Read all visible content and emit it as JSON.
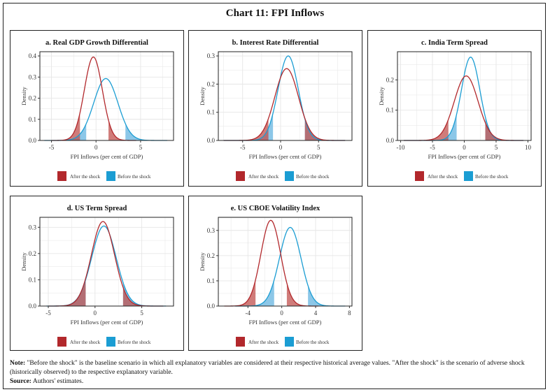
{
  "title": "Chart 11: FPI Inflows",
  "colors": {
    "after": "#b2282c",
    "before": "#1b9dd3",
    "after_fill": "#c0504d",
    "before_fill": "#6fb9e2"
  },
  "legend": {
    "after": "After the shock",
    "before": "Before the shock"
  },
  "note": {
    "label": "Note:",
    "text": "\"Before the shock\" is the baseline scenario in which all explanatory variables are considered at their respective historical average values. \"After the  shock\" is the scenario of adverse shock (historically observed) to the respective explanatory variable.",
    "source_label": "Source:",
    "source_text": "Authors' estimates."
  },
  "chart_data": [
    {
      "type": "area",
      "title": "a. Real GDP Growth Differential",
      "xlabel": "FPI Inflows (per cent of GDP)",
      "ylabel": "Density",
      "xlim": [
        -6.3,
        8.7
      ],
      "ylim": [
        0,
        0.42
      ],
      "xticks": [
        -5,
        0,
        5
      ],
      "yticks": [
        0,
        0.1,
        0.2,
        0.3,
        0.4
      ],
      "ytick_labels": [
        "0.0",
        "0.1",
        "0.2",
        "0.3",
        "0.4"
      ],
      "grid": true,
      "legend": "bottom",
      "series": [
        {
          "name": "Before the shock",
          "key": "before",
          "mode": 1.1,
          "peak_density": 0.293,
          "sd": 1.36,
          "range": [
            -5.8,
            8.0
          ],
          "shaded_below": -1.1,
          "shaded_above": 3.3
        },
        {
          "name": "After the shock",
          "key": "after",
          "mode": -0.3,
          "peak_density": 0.395,
          "sd": 1.01,
          "range": [
            -5.0,
            4.5
          ],
          "shaded_below": -1.8,
          "shaded_above": 1.4
        }
      ]
    },
    {
      "type": "area",
      "title": "b. Interest Rate Differential",
      "xlabel": "FPI Inflows (per cent of GDP)",
      "ylabel": "Density",
      "xlim": [
        -8.2,
        9.4
      ],
      "ylim": [
        0,
        0.315
      ],
      "xticks": [
        -5,
        0,
        5
      ],
      "yticks": [
        0,
        0.1,
        0.2,
        0.3
      ],
      "ytick_labels": [
        "0.0",
        "0.1",
        "0.2",
        "0.3"
      ],
      "grid": true,
      "legend": "bottom",
      "series": [
        {
          "name": "Before the shock",
          "key": "before",
          "mode": 1.0,
          "peak_density": 0.3,
          "sd": 1.33,
          "range": [
            -7.5,
            8.5
          ],
          "shaded_below": -1.0,
          "shaded_above": 3.2
        },
        {
          "name": "After the shock",
          "key": "after",
          "mode": 0.8,
          "peak_density": 0.255,
          "sd": 1.56,
          "range": [
            -7.5,
            8.5
          ],
          "shaded_below": -1.6,
          "shaded_above": 3.2
        }
      ]
    },
    {
      "type": "area",
      "title": "c. India Term Spread",
      "xlabel": "FPI Inflows (per cent of GDP)",
      "ylabel": "Density",
      "xlim": [
        -10.5,
        10.5
      ],
      "ylim": [
        0,
        0.293
      ],
      "xticks": [
        -10,
        -5,
        0,
        5,
        10
      ],
      "yticks": [
        0,
        0.1,
        0.2
      ],
      "ytick_labels": [
        "0.0",
        "0.1",
        "0.2"
      ],
      "grid": true,
      "legend": "bottom",
      "series": [
        {
          "name": "Before the shock",
          "key": "before",
          "mode": 1.0,
          "peak_density": 0.275,
          "sd": 1.45,
          "range": [
            -9.5,
            9.3
          ],
          "shaded_below": -1.2,
          "shaded_above": 3.3
        },
        {
          "name": "After the shock",
          "key": "after",
          "mode": 0.3,
          "peak_density": 0.213,
          "sd": 1.87,
          "range": [
            -9.5,
            9.3
          ],
          "shaded_below": -2.5,
          "shaded_above": 3.3
        }
      ]
    },
    {
      "type": "area",
      "title": "d. US Term Spread",
      "xlabel": "FPI Inflows (per cent of GDP)",
      "ylabel": "Density",
      "xlim": [
        -5.9,
        8.4
      ],
      "ylim": [
        0,
        0.338
      ],
      "xticks": [
        -5,
        0,
        5
      ],
      "yticks": [
        0,
        0.1,
        0.2,
        0.3
      ],
      "ytick_labels": [
        "0.0",
        "0.1",
        "0.2",
        "0.3"
      ],
      "grid": true,
      "legend": "bottom",
      "series": [
        {
          "name": "Before the shock",
          "key": "before",
          "mode": 0.95,
          "peak_density": 0.305,
          "sd": 1.31,
          "range": [
            -5.2,
            7.6
          ],
          "shaded_below": -1.0,
          "shaded_above": 3.0
        },
        {
          "name": "After the shock",
          "key": "after",
          "mode": 0.85,
          "peak_density": 0.322,
          "sd": 1.24,
          "range": [
            -5.0,
            7.3
          ],
          "shaded_below": -1.0,
          "shaded_above": 3.0
        }
      ]
    },
    {
      "type": "area",
      "title": "e. US CBOE Volatility Index",
      "xlabel": "FPI Inflows (per cent of GDP)",
      "ylabel": "Density",
      "xlim": [
        -7.5,
        8.3
      ],
      "ylim": [
        0,
        0.352
      ],
      "xticks": [
        -4,
        0,
        4,
        8
      ],
      "yticks": [
        0,
        0.1,
        0.2,
        0.3
      ],
      "ytick_labels": [
        "0.0",
        "0.1",
        "0.2",
        "0.3"
      ],
      "grid": true,
      "legend": "bottom",
      "series": [
        {
          "name": "Before the shock",
          "key": "before",
          "mode": 1.0,
          "peak_density": 0.312,
          "sd": 1.28,
          "range": [
            -5.5,
            7.5
          ],
          "shaded_below": -0.9,
          "shaded_above": 3.1
        },
        {
          "name": "After the shock",
          "key": "after",
          "mode": -1.3,
          "peak_density": 0.34,
          "sd": 1.17,
          "range": [
            -6.8,
            4.3
          ],
          "shaded_below": -3.1,
          "shaded_above": 0.6
        }
      ]
    }
  ]
}
